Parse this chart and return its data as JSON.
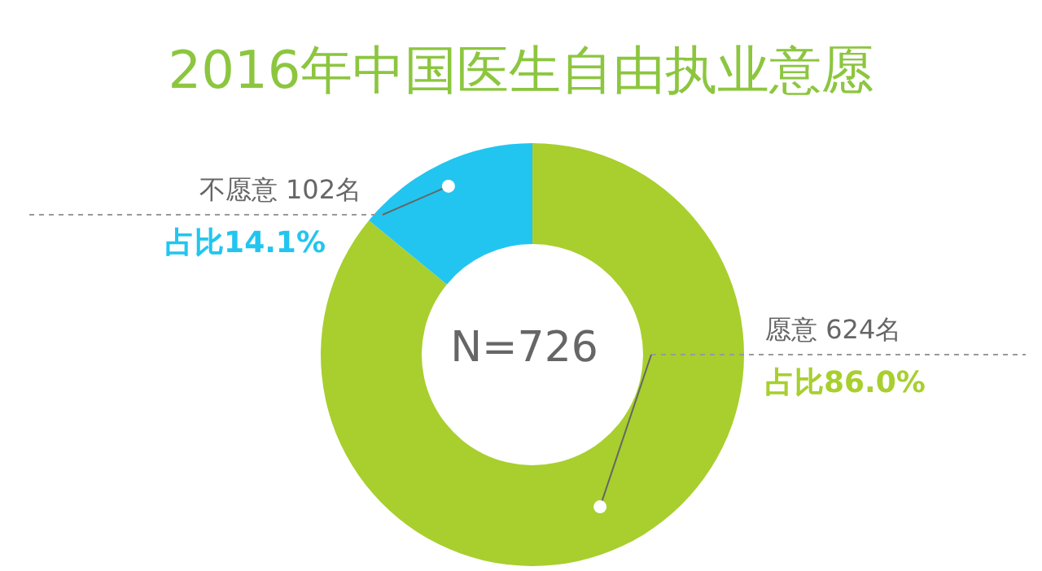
{
  "chart_data": {
    "type": "donut",
    "title": "2016年中国医生自由执业意愿",
    "categories": [
      "愿意",
      "不愿意"
    ],
    "values": [
      624,
      102
    ],
    "colors": [
      "#a8cf2e",
      "#22c5ef"
    ],
    "value_labels": [
      "624名",
      "102名"
    ],
    "annotations": [
      "N=726",
      "占比86.0%",
      "占比14.1%"
    ],
    "legend": false
  }
}
